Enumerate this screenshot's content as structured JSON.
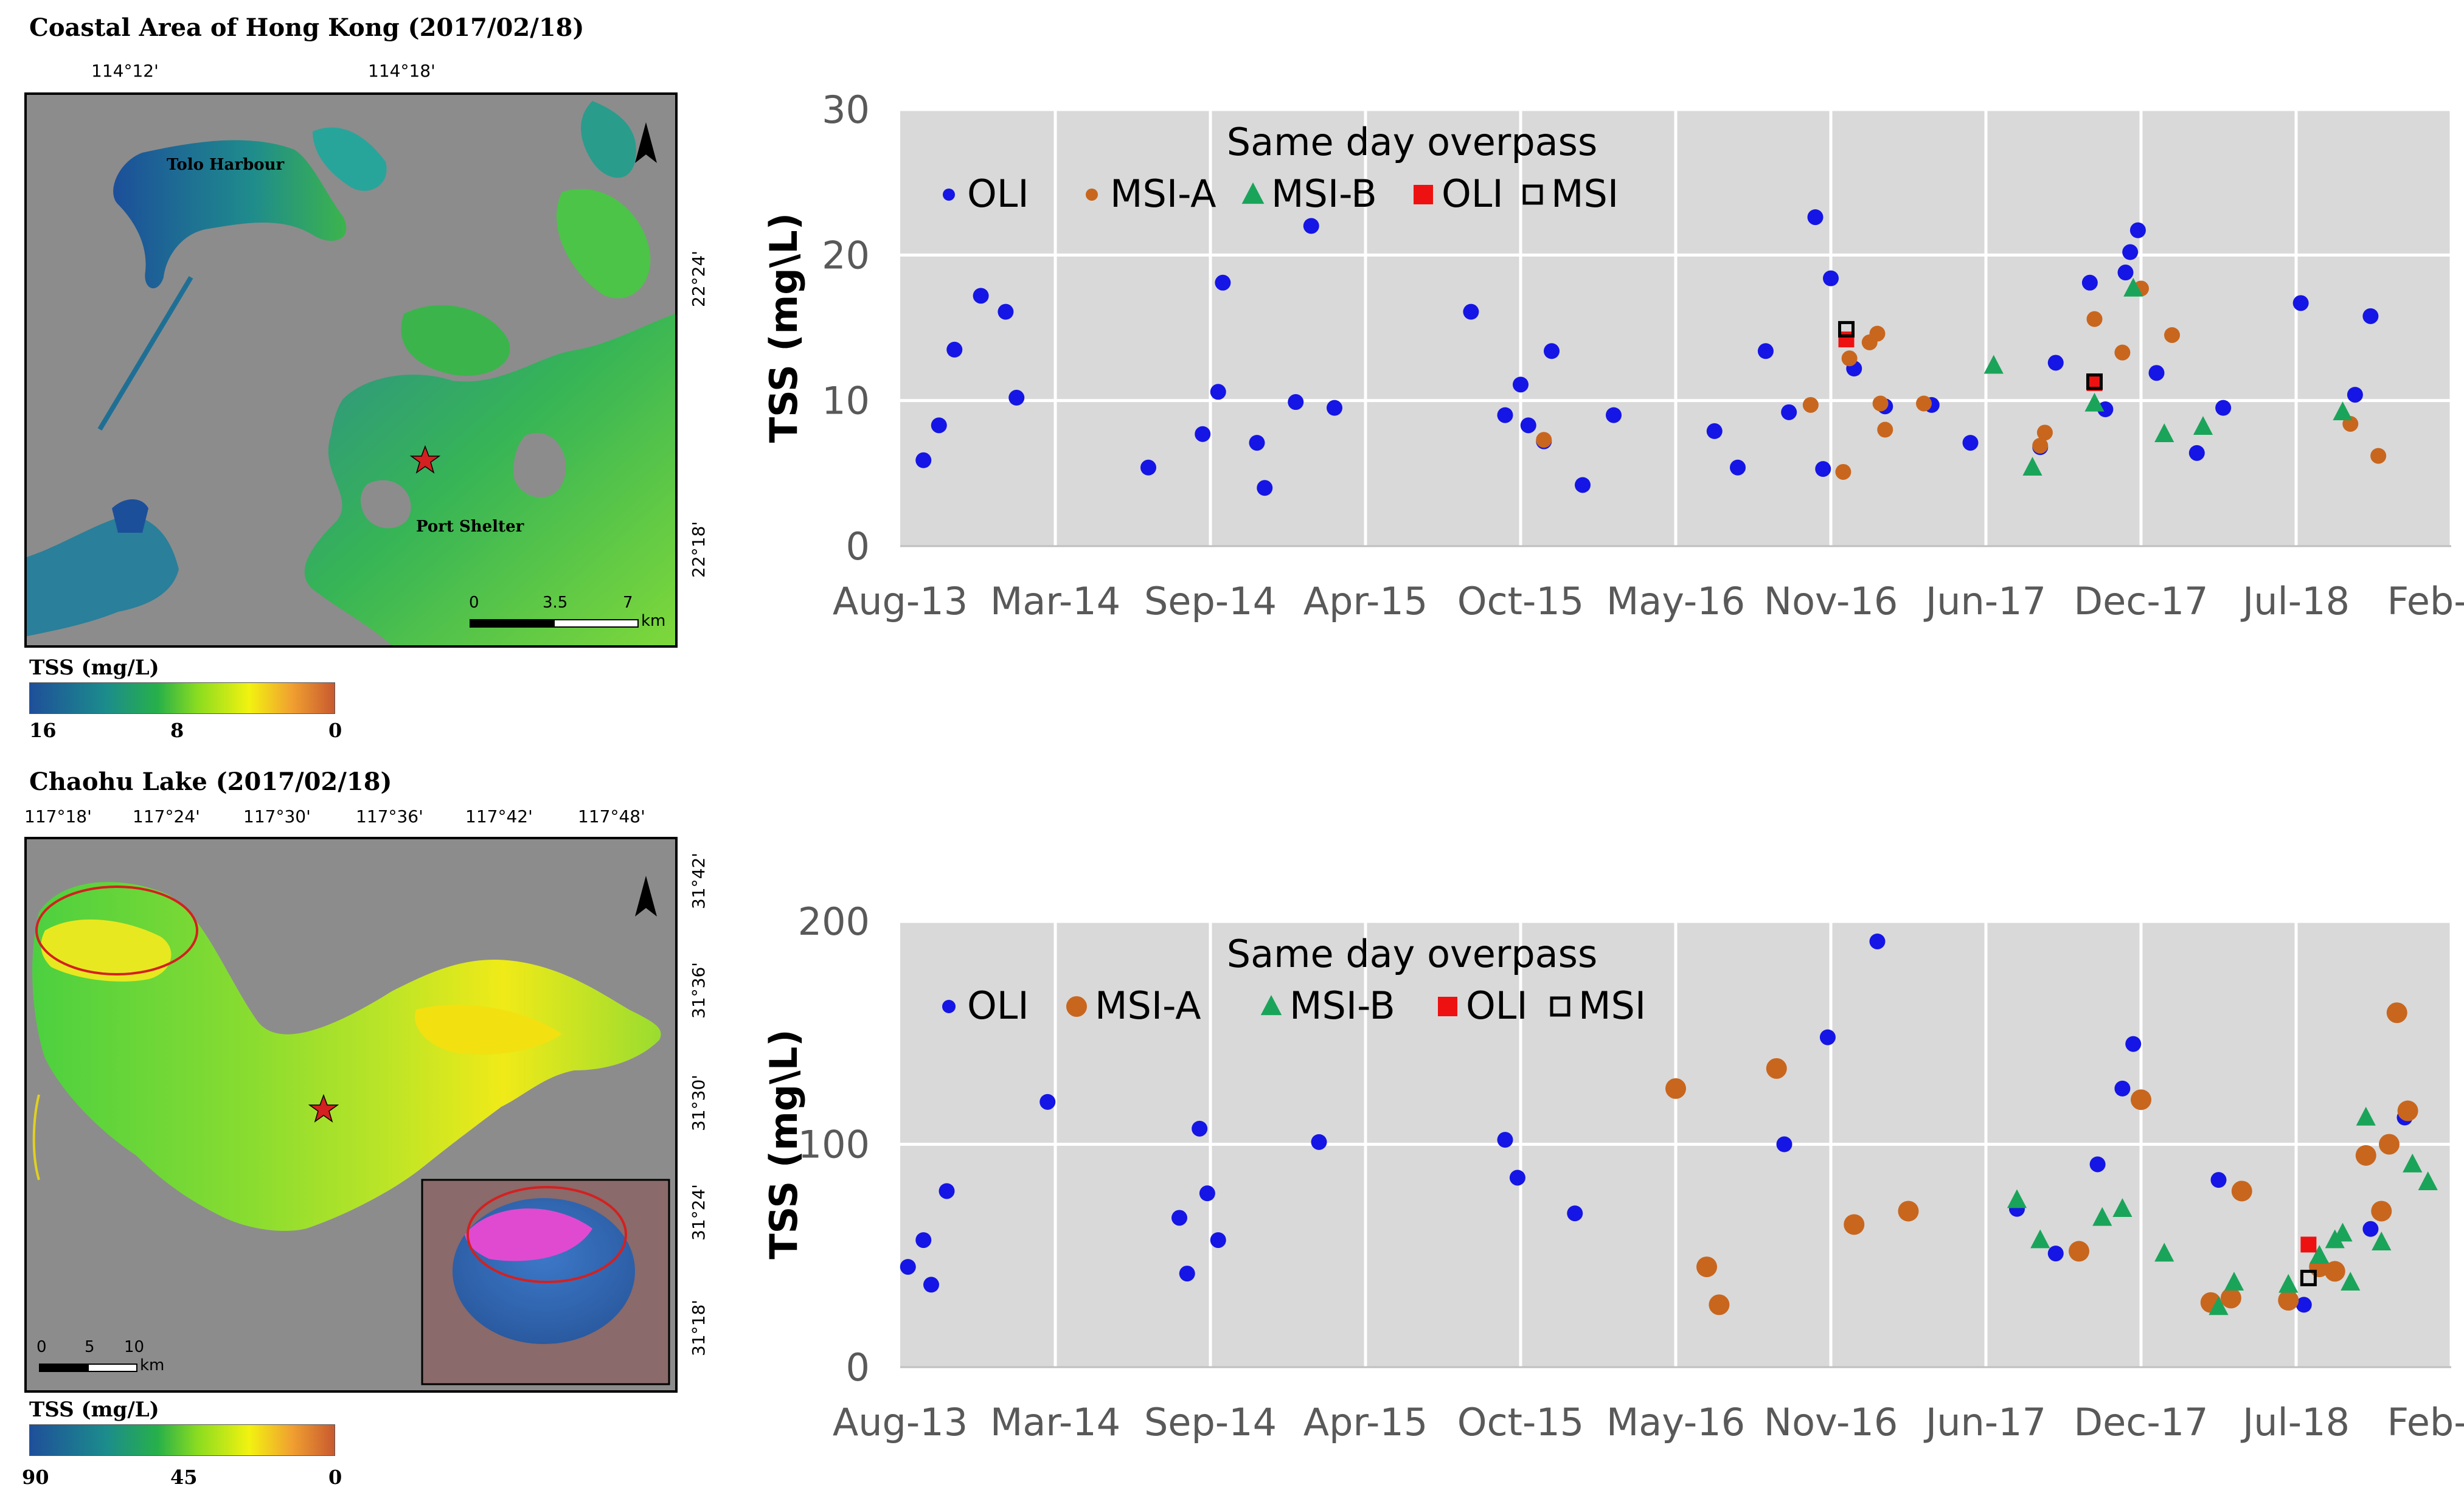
{
  "map1": {
    "title": "Coastal Area of Hong Kong (2017/02/18)",
    "top_ticks": [
      "114°12'",
      "114°18'"
    ],
    "right_ticks": [
      "22°24'",
      "22°18'"
    ],
    "labels": [
      "Tolo Harbour",
      "Port Shelter"
    ],
    "scale": [
      "0",
      "3.5",
      "7",
      "km"
    ],
    "legend": {
      "title": "TSS (mg/L)",
      "values": [
        "16",
        "8",
        "0"
      ]
    }
  },
  "map2": {
    "title": "Chaohu Lake (2017/02/18)",
    "top_ticks": [
      "117°18'",
      "117°24'",
      "117°30'",
      "117°36'",
      "117°42'",
      "117°48'"
    ],
    "right_ticks": [
      "31°42'",
      "31°36'",
      "31°30'",
      "31°24'",
      "31°18'"
    ],
    "scale": [
      "0",
      "5",
      "10",
      "km"
    ],
    "legend": {
      "title": "TSS (mg/L)",
      "values": [
        "90",
        "45",
        "0"
      ]
    }
  },
  "colors": {
    "OLI": "#1515e6",
    "MSI_A": "#c8661e",
    "MSI_B": "#1aa45a",
    "same_OLI": "#ee1111",
    "same_MSI": "#000000",
    "plot_bg": "#d9d9d9",
    "grid": "#ffffff",
    "star": "#d42020",
    "ellipse": "#d42020"
  },
  "chart_data": [
    {
      "type": "scatter",
      "title": "Same day overpass",
      "xlabel": "",
      "ylabel": "TSS (mg\\L)",
      "x_tick_labels": [
        "Aug-13",
        "Mar-14",
        "Sep-14",
        "Apr-15",
        "Oct-15",
        "May-16",
        "Nov-16",
        "Jun-17",
        "Dec-17",
        "Jul-18",
        "Feb-19"
      ],
      "x_range": [
        0,
        10
      ],
      "y_ticks": [
        0,
        10,
        20,
        30
      ],
      "ylim": [
        0,
        30
      ],
      "legend": [
        "OLI",
        "MSI-A",
        "MSI-B",
        "OLI",
        "MSI"
      ],
      "series": [
        {
          "name": "OLI",
          "marker": "circle",
          "points": [
            [
              0.15,
              5.9
            ],
            [
              0.25,
              8.3
            ],
            [
              0.35,
              13.5
            ],
            [
              0.52,
              17.2
            ],
            [
              0.68,
              16.1
            ],
            [
              0.75,
              10.2
            ],
            [
              1.6,
              5.4
            ],
            [
              1.95,
              7.7
            ],
            [
              2.05,
              10.6
            ],
            [
              2.08,
              18.1
            ],
            [
              2.3,
              7.1
            ],
            [
              2.35,
              4.0
            ],
            [
              2.55,
              9.9
            ],
            [
              2.65,
              22.0
            ],
            [
              2.8,
              9.5
            ],
            [
              3.68,
              16.1
            ],
            [
              3.9,
              9.0
            ],
            [
              4.0,
              11.1
            ],
            [
              4.05,
              8.3
            ],
            [
              4.15,
              7.2
            ],
            [
              4.2,
              13.4
            ],
            [
              4.4,
              4.2
            ],
            [
              4.6,
              9.0
            ],
            [
              5.25,
              7.9
            ],
            [
              5.4,
              5.4
            ],
            [
              5.58,
              13.4
            ],
            [
              5.73,
              9.2
            ],
            [
              5.9,
              22.6
            ],
            [
              5.95,
              5.3
            ],
            [
              6.0,
              18.4
            ],
            [
              6.15,
              12.2
            ],
            [
              6.35,
              9.6
            ],
            [
              6.65,
              9.7
            ],
            [
              6.9,
              7.1
            ],
            [
              7.35,
              6.8
            ],
            [
              7.45,
              12.6
            ],
            [
              7.67,
              18.1
            ],
            [
              7.77,
              9.4
            ],
            [
              7.9,
              18.8
            ],
            [
              7.93,
              20.2
            ],
            [
              7.98,
              21.7
            ],
            [
              8.1,
              11.9
            ],
            [
              8.36,
              6.4
            ],
            [
              8.53,
              9.5
            ],
            [
              9.03,
              16.7
            ],
            [
              9.38,
              10.4
            ],
            [
              9.48,
              15.8
            ]
          ]
        },
        {
          "name": "MSI-A",
          "marker": "circle",
          "points": [
            [
              4.15,
              7.3
            ],
            [
              5.87,
              9.7
            ],
            [
              6.08,
              5.1
            ],
            [
              6.12,
              12.9
            ],
            [
              6.25,
              14.0
            ],
            [
              6.3,
              14.6
            ],
            [
              6.32,
              9.8
            ],
            [
              6.35,
              8.0
            ],
            [
              6.6,
              9.8
            ],
            [
              7.35,
              6.9
            ],
            [
              7.38,
              7.8
            ],
            [
              7.7,
              15.6
            ],
            [
              7.88,
              13.3
            ],
            [
              8.0,
              17.7
            ],
            [
              8.2,
              14.5
            ],
            [
              9.35,
              8.4
            ],
            [
              9.53,
              6.2
            ]
          ]
        },
        {
          "name": "MSI-B",
          "marker": "triangle",
          "points": [
            [
              7.05,
              12.4
            ],
            [
              7.3,
              5.4
            ],
            [
              7.7,
              9.8
            ],
            [
              7.95,
              17.7
            ],
            [
              8.15,
              7.7
            ],
            [
              8.4,
              8.2
            ],
            [
              9.3,
              9.2
            ]
          ]
        },
        {
          "name": "OLI (same day)",
          "marker": "square",
          "points": [
            [
              6.1,
              14.2
            ],
            [
              7.7,
              11.2
            ]
          ]
        },
        {
          "name": "MSI (same day)",
          "marker": "open-square",
          "points": [
            [
              6.1,
              14.9
            ],
            [
              7.7,
              11.3
            ]
          ]
        }
      ]
    },
    {
      "type": "scatter",
      "title": "Same day overpass",
      "xlabel": "",
      "ylabel": "TSS (mg\\L)",
      "x_tick_labels": [
        "Aug-13",
        "Mar-14",
        "Sep-14",
        "Apr-15",
        "Oct-15",
        "May-16",
        "Nov-16",
        "Jun-17",
        "Dec-17",
        "Jul-18",
        "Feb-19"
      ],
      "x_range": [
        0,
        10
      ],
      "y_ticks": [
        0,
        100,
        200
      ],
      "ylim": [
        0,
        200
      ],
      "legend": [
        "OLI",
        "MSI-A",
        "MSI-B",
        "OLI",
        "MSI"
      ],
      "series": [
        {
          "name": "OLI",
          "marker": "circle",
          "points": [
            [
              0.05,
              45
            ],
            [
              0.15,
              57
            ],
            [
              0.2,
              37
            ],
            [
              0.3,
              79
            ],
            [
              0.95,
              119
            ],
            [
              1.8,
              67
            ],
            [
              1.85,
              42
            ],
            [
              1.93,
              107
            ],
            [
              1.98,
              78
            ],
            [
              2.05,
              57
            ],
            [
              2.7,
              101
            ],
            [
              3.9,
              102
            ],
            [
              3.98,
              85
            ],
            [
              4.35,
              69
            ],
            [
              5.7,
              100
            ],
            [
              5.98,
              148
            ],
            [
              6.3,
              191
            ],
            [
              7.2,
              71
            ],
            [
              7.45,
              51
            ],
            [
              7.72,
              91
            ],
            [
              7.88,
              125
            ],
            [
              7.95,
              145
            ],
            [
              8.5,
              84
            ],
            [
              9.05,
              28
            ],
            [
              9.48,
              62
            ],
            [
              9.7,
              112
            ]
          ]
        },
        {
          "name": "MSI-A",
          "marker": "circle",
          "points": [
            [
              5.0,
              125
            ],
            [
              5.2,
              45
            ],
            [
              5.28,
              28
            ],
            [
              5.65,
              134
            ],
            [
              6.15,
              64
            ],
            [
              6.5,
              70
            ],
            [
              7.6,
              52
            ],
            [
              8.0,
              120
            ],
            [
              8.45,
              29
            ],
            [
              8.58,
              31
            ],
            [
              8.65,
              79
            ],
            [
              8.95,
              30
            ],
            [
              9.15,
              45
            ],
            [
              9.25,
              43
            ],
            [
              9.45,
              95
            ],
            [
              9.55,
              70
            ],
            [
              9.6,
              100
            ],
            [
              9.65,
              159
            ],
            [
              9.72,
              115
            ]
          ]
        },
        {
          "name": "MSI-B",
          "marker": "triangle",
          "points": [
            [
              7.2,
              75
            ],
            [
              7.35,
              57
            ],
            [
              7.75,
              67
            ],
            [
              7.88,
              71
            ],
            [
              8.15,
              51
            ],
            [
              8.5,
              27
            ],
            [
              8.6,
              38
            ],
            [
              8.95,
              37
            ],
            [
              9.15,
              50
            ],
            [
              9.25,
              57
            ],
            [
              9.3,
              60
            ],
            [
              9.35,
              38
            ],
            [
              9.45,
              112
            ],
            [
              9.55,
              56
            ],
            [
              9.75,
              91
            ],
            [
              9.85,
              83
            ]
          ]
        },
        {
          "name": "OLI (same day)",
          "marker": "square",
          "points": [
            [
              9.08,
              55
            ]
          ]
        },
        {
          "name": "MSI (same day)",
          "marker": "open-square",
          "points": [
            [
              9.08,
              40
            ]
          ]
        }
      ]
    }
  ]
}
